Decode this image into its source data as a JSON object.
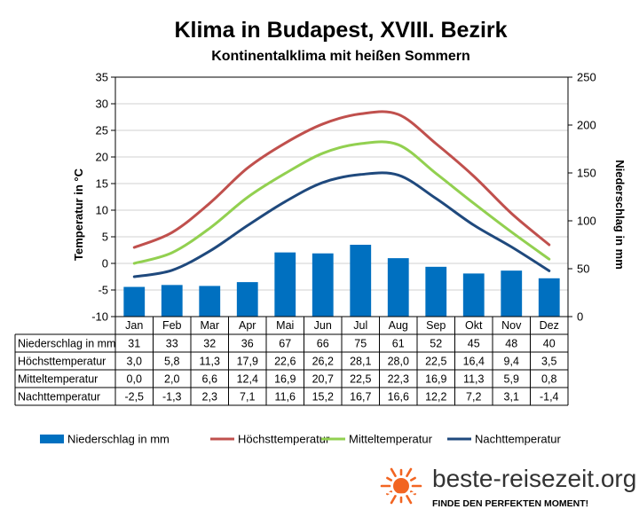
{
  "chart_data": {
    "type": "bar",
    "title": "Klima in Budapest, XVIII. Bezirk",
    "subtitle": "Kontinentalklima mit heißen Sommern",
    "ylabel": "Temperatur in °C",
    "y2label": "Niederschlag in mm",
    "ylim": [
      -10,
      35
    ],
    "y2lim": [
      0,
      250
    ],
    "yticks": [
      "35",
      "30",
      "25",
      "20",
      "15",
      "10",
      "5",
      "0",
      "-5",
      "-10"
    ],
    "y2ticks": [
      "250",
      "200",
      "150",
      "100",
      "50",
      "0"
    ],
    "categories": [
      "Jan",
      "Feb",
      "Mar",
      "Apr",
      "Mai",
      "Jun",
      "Jul",
      "Aug",
      "Sep",
      "Okt",
      "Nov",
      "Dez"
    ],
    "series": [
      {
        "name": "Niederschlag in mm",
        "kind": "bar",
        "axis": "right",
        "color": "#0070c0",
        "values": [
          31,
          33,
          32,
          36,
          67,
          66,
          75,
          61,
          52,
          45,
          48,
          40
        ],
        "labels": [
          "31",
          "33",
          "32",
          "36",
          "67",
          "66",
          "75",
          "61",
          "52",
          "45",
          "48",
          "40"
        ]
      },
      {
        "name": "Höchsttemperatur",
        "kind": "line",
        "axis": "left",
        "color": "#c0504d",
        "values": [
          3.0,
          5.8,
          11.3,
          17.9,
          22.6,
          26.2,
          28.1,
          28.0,
          22.5,
          16.4,
          9.4,
          3.5
        ],
        "labels": [
          "3,0",
          "5,8",
          "11,3",
          "17,9",
          "22,6",
          "26,2",
          "28,1",
          "28,0",
          "22,5",
          "16,4",
          "9,4",
          "3,5"
        ]
      },
      {
        "name": "Mitteltemperatur",
        "kind": "line",
        "axis": "left",
        "color": "#92d050",
        "values": [
          0.0,
          2.0,
          6.6,
          12.4,
          16.9,
          20.7,
          22.5,
          22.3,
          16.9,
          11.3,
          5.9,
          0.8
        ],
        "labels": [
          "0,0",
          "2,0",
          "6,6",
          "12,4",
          "16,9",
          "20,7",
          "22,5",
          "22,3",
          "16,9",
          "11,3",
          "5,9",
          "0,8"
        ]
      },
      {
        "name": "Nachttemperatur",
        "kind": "line",
        "axis": "left",
        "color": "#1f497d",
        "values": [
          -2.5,
          -1.3,
          2.3,
          7.1,
          11.6,
          15.2,
          16.7,
          16.6,
          12.2,
          7.2,
          3.1,
          -1.4
        ],
        "labels": [
          "-2,5",
          "-1,3",
          "2,3",
          "7,1",
          "11,6",
          "15,2",
          "16,7",
          "16,6",
          "12,2",
          "7,2",
          "3,1",
          "-1,4"
        ]
      }
    ],
    "grid": "horizontal",
    "legend": "bottom"
  },
  "branding": {
    "name": "beste-reisezeit.org",
    "tagline": "FINDE DEN PERFEKTEN MOMENT!",
    "sun_color": "#f26522"
  }
}
